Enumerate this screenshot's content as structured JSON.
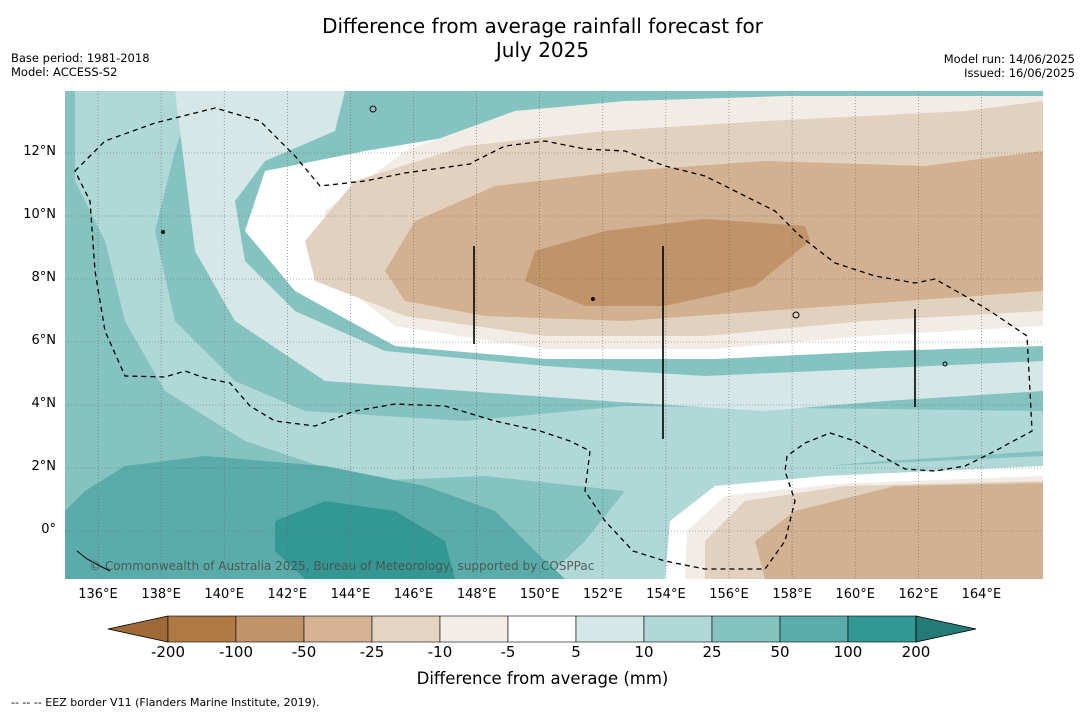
{
  "title_line1": "Difference from average rainfall forecast for",
  "title_line2": "July 2025",
  "base_period": "Base period: 1981-2018",
  "model": "Model: ACCESS-S2",
  "model_run": "Model run: 14/06/2025",
  "issued": "Issued: 16/06/2025",
  "copyright": "© Commonwealth of Australia 2025, Bureau of Meteorology, supported by COSPPac",
  "longitude_labels": [
    "136°E",
    "138°E",
    "140°E",
    "142°E",
    "144°E",
    "146°E",
    "148°E",
    "150°E",
    "152°E",
    "154°E",
    "156°E",
    "158°E",
    "160°E",
    "162°E",
    "164°E"
  ],
  "latitude_labels": [
    "12°N",
    "10°N",
    "8°N",
    "6°N",
    "4°N",
    "2°N",
    "0°"
  ],
  "colorbar": {
    "ticks": [
      "-200",
      "-100",
      "-50",
      "-25",
      "-10",
      "-5",
      "5",
      "10",
      "25",
      "50",
      "100",
      "200"
    ],
    "colors": [
      "#a06a38",
      "#b07a44",
      "#c09468",
      "#d6b394",
      "#e5d4c2",
      "#f2ede8",
      "#ffffff",
      "#d5e8e7",
      "#b0d8d6",
      "#84c3c0",
      "#5aacaa",
      "#339894",
      "#237a77"
    ],
    "label": "Difference from average (mm)"
  },
  "legend": "--  --  -- EEZ border V11 (Flanders Marine Institute, 2019).",
  "colors": {
    "dry_dark": "#c09468",
    "dry_mid": "#d1b191",
    "dry_light": "#e3d1bf",
    "dry_faint": "#f1ece6",
    "neutral": "#ffffff",
    "wet_faint": "#d5e8e7",
    "wet_light": "#b0d8d6",
    "wet_mid": "#84c3c0",
    "wet_strong": "#5aacaa",
    "wet_dark": "#339894"
  }
}
